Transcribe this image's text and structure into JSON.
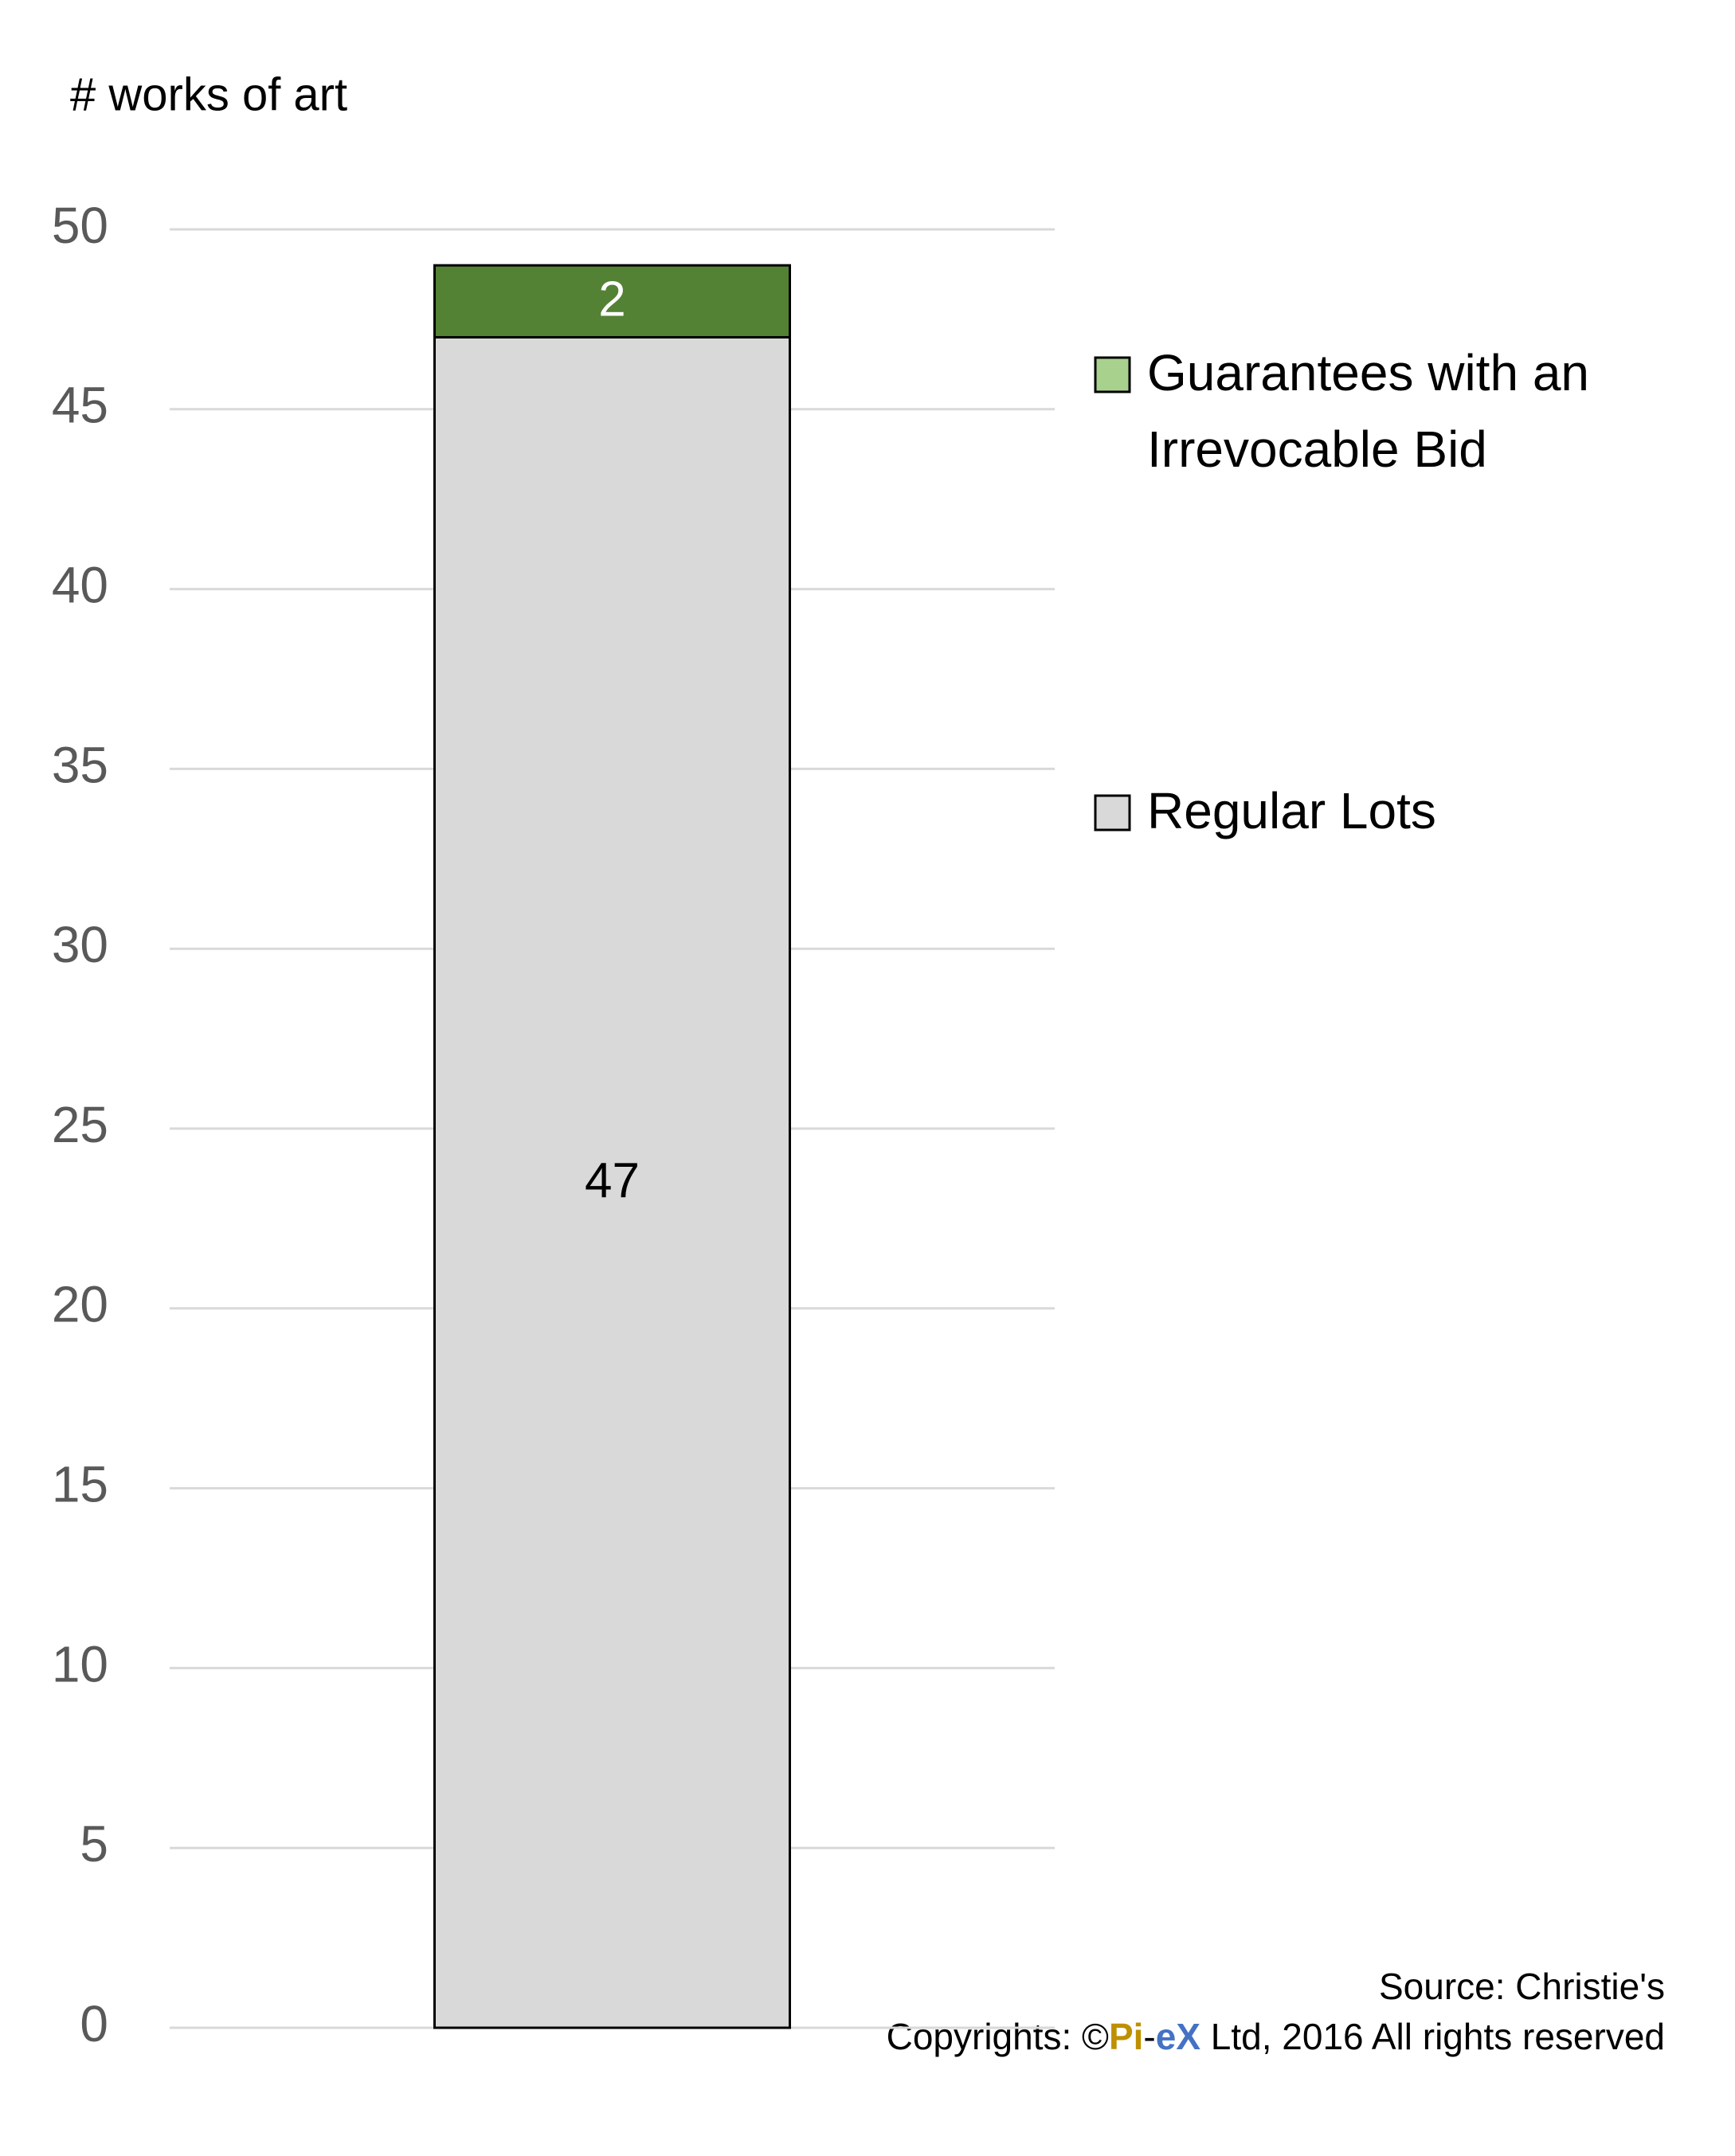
{
  "chart_data": {
    "type": "bar",
    "stacked": true,
    "y_label": "# works of art",
    "categories": [
      null
    ],
    "series": [
      {
        "name": "Regular Lots",
        "color": "#d9d9d9",
        "legend_color": "#d9d9d9",
        "label_color": "#000000",
        "values": [
          47
        ]
      },
      {
        "name": "Guarantees with an Irrevocable Bid",
        "color": "#548235",
        "legend_color": "#a9d18e",
        "label_color": "#ffffff",
        "values": [
          2
        ]
      }
    ],
    "ylim": [
      0,
      50
    ],
    "yticks": [
      0,
      5,
      10,
      15,
      20,
      25,
      30,
      35,
      40,
      45,
      50
    ],
    "grid": true,
    "legend": "right",
    "source": "Source: Christie's",
    "copyright": [
      {
        "text": "Copyrights: ©",
        "color": "#000000"
      },
      {
        "text": "Pi",
        "color": "#bf9000"
      },
      {
        "text": "-",
        "color": "#000000"
      },
      {
        "text": "eX",
        "color": "#4472c4"
      },
      {
        "text": " Ltd, 2016 All rights reserved",
        "color": "#000000"
      }
    ]
  }
}
